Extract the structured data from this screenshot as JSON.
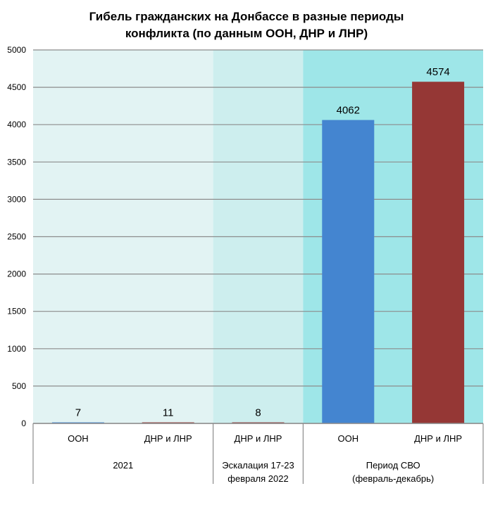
{
  "chart_data": {
    "type": "bar",
    "title": "Гибель гражданских на Донбассе в разные периоды конфликта (по данным ООН, ДНР и ЛНР)",
    "title_lines": [
      "Гибель гражданских на Донбассе в разные периоды",
      "конфликта (по данным ООН, ДНР и ЛНР)"
    ],
    "categories": [
      "ООН",
      "ДНР и ЛНР",
      "ДНР и ЛНР",
      "ООН",
      "ДНР и ЛНР"
    ],
    "groups": [
      {
        "label": [
          "2021"
        ],
        "span": 2,
        "band_color": "#e2f3f3"
      },
      {
        "label": [
          "Эскалация 17-23",
          "февраля 2022"
        ],
        "span": 1,
        "band_color": "#cdeeee"
      },
      {
        "label": [
          "Период СВО",
          "(февраль-декабрь)"
        ],
        "span": 2,
        "band_color": "#9ee6e8"
      }
    ],
    "values": [
      7,
      11,
      8,
      4062,
      4574
    ],
    "bar_colors": [
      "#4485d0",
      "#953735",
      "#953735",
      "#4485d0",
      "#953735"
    ],
    "data_labels": [
      "7",
      "11",
      "8",
      "4062",
      "4574"
    ],
    "ylim": [
      0,
      5000
    ],
    "yticks": [
      "0",
      "500",
      "1000",
      "1500",
      "2000",
      "2500",
      "3000",
      "3500",
      "4000",
      "4500",
      "5000"
    ],
    "grid": true,
    "xlabel": "",
    "ylabel": ""
  }
}
